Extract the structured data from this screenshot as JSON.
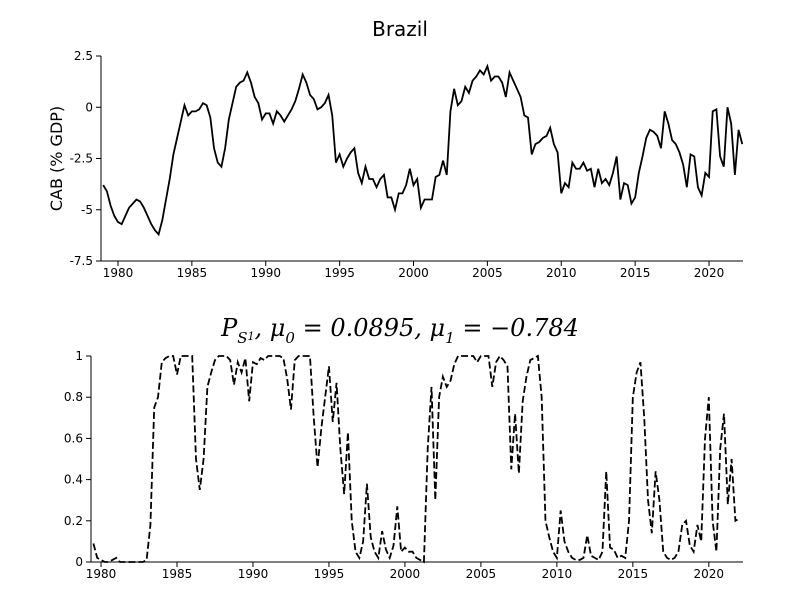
{
  "chart_data": [
    {
      "type": "line",
      "title": "Brazil",
      "y_label": "CAB (% GDP)",
      "linestyle": "solid",
      "xlim": [
        1978.85,
        2022.3
      ],
      "ylim": [
        -7.5,
        2.5
      ],
      "xticks": [
        1980,
        1985,
        1990,
        1995,
        2000,
        2005,
        2010,
        2015,
        2020
      ],
      "yticks": [
        2.5,
        0,
        -2.5,
        -5,
        -7.5
      ],
      "x": [
        1979,
        1979.25,
        1979.5,
        1979.75,
        1980,
        1980.25,
        1980.5,
        1980.75,
        1981,
        1981.25,
        1981.5,
        1981.75,
        1982,
        1982.25,
        1982.5,
        1982.75,
        1983,
        1983.25,
        1983.5,
        1983.75,
        1984,
        1984.25,
        1984.5,
        1984.75,
        1985,
        1985.25,
        1985.5,
        1985.75,
        1986,
        1986.25,
        1986.5,
        1986.75,
        1987,
        1987.25,
        1987.5,
        1987.75,
        1988,
        1988.25,
        1988.5,
        1988.75,
        1989,
        1989.25,
        1989.5,
        1989.75,
        1990,
        1990.25,
        1990.5,
        1990.75,
        1991,
        1991.25,
        1991.5,
        1991.75,
        1992,
        1992.25,
        1992.5,
        1992.75,
        1993,
        1993.25,
        1993.5,
        1993.75,
        1994,
        1994.25,
        1994.5,
        1994.75,
        1995,
        1995.25,
        1995.5,
        1995.75,
        1996,
        1996.25,
        1996.5,
        1996.75,
        1997,
        1997.25,
        1997.5,
        1997.75,
        1998,
        1998.25,
        1998.5,
        1998.75,
        1999,
        1999.25,
        1999.5,
        1999.75,
        2000,
        2000.25,
        2000.5,
        2000.75,
        2001,
        2001.25,
        2001.5,
        2001.75,
        2002,
        2002.25,
        2002.5,
        2002.75,
        2003,
        2003.25,
        2003.5,
        2003.75,
        2004,
        2004.25,
        2004.5,
        2004.75,
        2005,
        2005.25,
        2005.5,
        2005.75,
        2006,
        2006.25,
        2006.5,
        2006.75,
        2007,
        2007.25,
        2007.5,
        2007.75,
        2008,
        2008.25,
        2008.5,
        2008.75,
        2009,
        2009.25,
        2009.5,
        2009.75,
        2010,
        2010.25,
        2010.5,
        2010.75,
        2011,
        2011.25,
        2011.5,
        2011.75,
        2012,
        2012.25,
        2012.5,
        2012.75,
        2013,
        2013.25,
        2013.5,
        2013.75,
        2014,
        2014.25,
        2014.5,
        2014.75,
        2015,
        2015.25,
        2015.5,
        2015.75,
        2016,
        2016.25,
        2016.5,
        2016.75,
        2017,
        2017.25,
        2017.5,
        2017.75,
        2018,
        2018.25,
        2018.5,
        2018.75,
        2019,
        2019.25,
        2019.5,
        2019.75,
        2020,
        2020.25,
        2020.5,
        2020.75,
        2021,
        2021.25,
        2021.5,
        2021.75,
        2022,
        2022.25
      ],
      "series": [
        {
          "color": "#000000",
          "values": [
            -3.8,
            -4.1,
            -4.8,
            -5.3,
            -5.6,
            -5.7,
            -5.3,
            -4.9,
            -4.7,
            -4.5,
            -4.6,
            -4.9,
            -5.3,
            -5.7,
            -6.0,
            -6.2,
            -5.5,
            -4.5,
            -3.5,
            -2.3,
            -1.5,
            -0.7,
            0.1,
            -0.4,
            -0.2,
            -0.2,
            -0.1,
            0.2,
            0.1,
            -0.5,
            -2.0,
            -2.7,
            -2.9,
            -2.0,
            -0.6,
            0.2,
            1.0,
            1.2,
            1.3,
            1.7,
            1.2,
            0.5,
            0.2,
            -0.6,
            -0.3,
            -0.3,
            -0.8,
            -0.2,
            -0.4,
            -0.7,
            -0.4,
            -0.1,
            0.3,
            0.9,
            1.6,
            1.2,
            0.6,
            0.4,
            -0.1,
            0.0,
            0.2,
            0.6,
            -0.4,
            -2.7,
            -2.3,
            -2.9,
            -2.5,
            -2.2,
            -2.0,
            -3.2,
            -3.7,
            -2.9,
            -3.5,
            -3.5,
            -3.9,
            -3.5,
            -3.3,
            -4.4,
            -4.4,
            -5.0,
            -4.2,
            -4.2,
            -3.8,
            -3.0,
            -3.8,
            -3.5,
            -4.9,
            -4.5,
            -4.5,
            -4.5,
            -3.4,
            -3.3,
            -2.6,
            -3.3,
            -0.2,
            0.9,
            0.1,
            0.3,
            1.0,
            0.7,
            1.3,
            1.5,
            1.8,
            1.6,
            2.0,
            1.3,
            1.5,
            1.5,
            1.2,
            0.5,
            1.7,
            1.3,
            0.9,
            0.5,
            -0.4,
            -0.5,
            -2.3,
            -1.8,
            -1.7,
            -1.5,
            -1.4,
            -1.0,
            -1.8,
            -2.2,
            -4.2,
            -3.7,
            -3.9,
            -2.7,
            -3.0,
            -3.0,
            -2.7,
            -3.1,
            -3.0,
            -3.9,
            -3.0,
            -3.7,
            -3.5,
            -3.8,
            -3.2,
            -2.4,
            -4.5,
            -3.7,
            -3.8,
            -4.7,
            -4.4,
            -3.2,
            -2.4,
            -1.5,
            -1.1,
            -1.2,
            -1.4,
            -2.0,
            -0.2,
            -0.8,
            -1.6,
            -1.8,
            -2.2,
            -2.8,
            -3.9,
            -2.3,
            -2.4,
            -3.9,
            -4.3,
            -3.2,
            -3.4,
            -0.2,
            -0.1,
            -2.4,
            -2.9,
            0.0,
            -0.8,
            -3.3,
            -1.1,
            -1.8
          ]
        }
      ]
    },
    {
      "type": "line",
      "title": [
        "P",
        "S",
        "1",
        ", μ",
        "0",
        " = 0.0895, μ",
        "1",
        " = −0.784"
      ],
      "linestyle": "dashed",
      "xlim": [
        1979.34,
        2022.25
      ],
      "ylim": [
        0,
        1
      ],
      "xticks": [
        1980,
        1985,
        1990,
        1995,
        2000,
        2005,
        2010,
        2015,
        2020
      ],
      "yticks": [
        0,
        0.2,
        0.4,
        0.6,
        0.8,
        1
      ],
      "x": [
        1979.5,
        1979.75,
        1980,
        1980.25,
        1980.5,
        1980.75,
        1981,
        1981.25,
        1981.5,
        1981.75,
        1982,
        1982.25,
        1982.5,
        1982.75,
        1983,
        1983.25,
        1983.5,
        1983.75,
        1984,
        1984.25,
        1984.5,
        1984.75,
        1985,
        1985.25,
        1985.5,
        1985.75,
        1986,
        1986.25,
        1986.5,
        1986.75,
        1987,
        1987.25,
        1987.5,
        1987.75,
        1988,
        1988.25,
        1988.5,
        1988.75,
        1989,
        1989.25,
        1989.5,
        1989.75,
        1990,
        1990.25,
        1990.5,
        1990.75,
        1991,
        1991.25,
        1991.5,
        1991.75,
        1992,
        1992.25,
        1992.5,
        1992.75,
        1993,
        1993.25,
        1993.5,
        1993.75,
        1994,
        1994.25,
        1994.5,
        1994.75,
        1995,
        1995.25,
        1995.5,
        1995.75,
        1996,
        1996.25,
        1996.5,
        1996.75,
        1997,
        1997.25,
        1997.5,
        1997.75,
        1998,
        1998.25,
        1998.5,
        1998.75,
        1999,
        1999.25,
        1999.5,
        1999.75,
        2000,
        2000.25,
        2000.5,
        2000.75,
        2001,
        2001.25,
        2001.5,
        2001.75,
        2002,
        2002.25,
        2002.5,
        2002.75,
        2003,
        2003.25,
        2003.5,
        2003.75,
        2004,
        2004.25,
        2004.5,
        2004.75,
        2005,
        2005.25,
        2005.5,
        2005.75,
        2006,
        2006.25,
        2006.5,
        2006.75,
        2007,
        2007.25,
        2007.5,
        2007.75,
        2008,
        2008.25,
        2008.5,
        2008.75,
        2009,
        2009.25,
        2009.5,
        2009.75,
        2010,
        2010.25,
        2010.5,
        2010.75,
        2011,
        2011.25,
        2011.5,
        2011.75,
        2012,
        2012.25,
        2012.5,
        2012.75,
        2013,
        2013.25,
        2013.5,
        2013.75,
        2014,
        2014.25,
        2014.5,
        2014.75,
        2015,
        2015.25,
        2015.5,
        2015.75,
        2016,
        2016.25,
        2016.5,
        2016.75,
        2017,
        2017.25,
        2017.5,
        2017.75,
        2018,
        2018.25,
        2018.5,
        2018.75,
        2019,
        2019.25,
        2019.5,
        2019.75,
        2020,
        2020.25,
        2020.5,
        2020.75,
        2021,
        2021.25,
        2021.5,
        2021.75,
        2022
      ],
      "series": [
        {
          "color": "#000000",
          "values": [
            0.09,
            0.02,
            0.01,
            0,
            0,
            0.01,
            0.02,
            0,
            0,
            0,
            0,
            0,
            0,
            0,
            0.01,
            0.18,
            0.75,
            0.8,
            0.97,
            0.99,
            1,
            1,
            0.91,
            1,
            1,
            1,
            1,
            0.5,
            0.35,
            0.5,
            0.85,
            0.92,
            0.98,
            1,
            1,
            1,
            0.98,
            0.86,
            0.97,
            0.92,
            0.99,
            0.78,
            0.97,
            0.96,
            0.99,
            0.98,
            1,
            1,
            1,
            1,
            0.99,
            0.89,
            0.74,
            0.98,
            1,
            1,
            1,
            1,
            0.7,
            0.46,
            0.65,
            0.8,
            0.95,
            0.68,
            0.87,
            0.55,
            0.33,
            0.63,
            0.2,
            0.05,
            0.02,
            0.1,
            0.38,
            0.12,
            0.05,
            0.02,
            0.15,
            0.06,
            0.02,
            0.08,
            0.27,
            0.05,
            0.07,
            0.05,
            0.05,
            0.02,
            0.01,
            0,
            0.55,
            0.85,
            0.3,
            0.8,
            0.9,
            0.85,
            0.88,
            0.96,
            1,
            1,
            1,
            1,
            1,
            0.97,
            1,
            1,
            1,
            0.85,
            0.97,
            1,
            0.98,
            0.95,
            0.45,
            0.72,
            0.43,
            0.78,
            0.9,
            0.98,
            0.99,
            1,
            0.8,
            0.2,
            0.12,
            0.05,
            0.02,
            0.25,
            0.1,
            0.05,
            0.02,
            0.01,
            0.01,
            0.02,
            0.13,
            0.03,
            0.02,
            0.01,
            0.05,
            0.44,
            0.07,
            0.06,
            0.02,
            0.03,
            0.02,
            0.2,
            0.8,
            0.92,
            0.97,
            0.7,
            0.3,
            0.14,
            0.44,
            0.3,
            0.05,
            0.02,
            0.01,
            0.02,
            0.05,
            0.18,
            0.2,
            0.08,
            0.05,
            0.18,
            0.1,
            0.6,
            0.8,
            0.2,
            0.05,
            0.55,
            0.72,
            0.28,
            0.5,
            0.2,
            0.21
          ]
        }
      ]
    }
  ]
}
